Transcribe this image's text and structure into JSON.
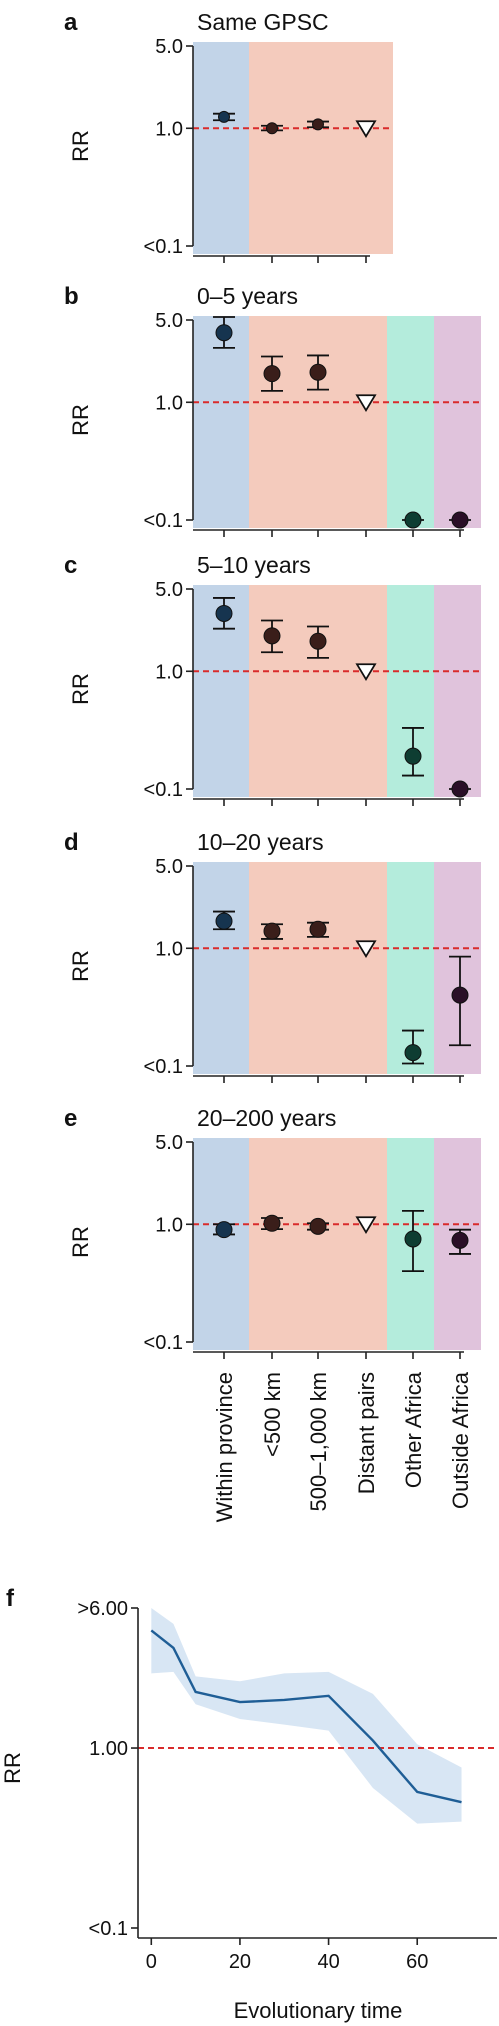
{
  "colors": {
    "within": "#c2d4e8",
    "near": "#f4cbbd",
    "other_africa": "#b4ecdc",
    "outside_africa": "#e0c3dc",
    "ref_line": "#d92b2b",
    "axis": "#222222",
    "line_f": "#1f5e96",
    "band_f": "#d8e6f4",
    "pt_within": "#16344f",
    "pt_near": "#3a1e1a",
    "pt_other": "#0e3d32",
    "pt_outside": "#2a0f27"
  },
  "categories": [
    "Within province",
    "<500 km",
    "500–1,000 km",
    "Distant pairs",
    "Other Africa",
    "Outside Africa"
  ],
  "chart_data": [
    {
      "type": "scatter",
      "letter": "a",
      "title": "Same GPSC",
      "ylabel": "RR",
      "yticks": [
        "5.0",
        "1.0",
        "<0.1"
      ],
      "ytick_values": [
        5.0,
        1.0,
        0.1
      ],
      "ylim": [
        0.1,
        5.0
      ],
      "scale": "log",
      "categories": [
        "Within province",
        "<500 km",
        "500–1,000 km",
        "Distant pairs"
      ],
      "values": [
        1.25,
        1.0,
        1.08,
        1.0
      ],
      "ci_low": [
        1.17,
        0.96,
        1.02,
        null
      ],
      "ci_high": [
        1.33,
        1.05,
        1.14,
        null
      ],
      "reference": [
        false,
        false,
        false,
        true
      ]
    },
    {
      "type": "scatter",
      "letter": "b",
      "title": "0–5 years",
      "ylabel": "RR",
      "yticks": [
        "5.0",
        "1.0",
        "<0.1"
      ],
      "ytick_values": [
        5.0,
        1.0,
        0.1
      ],
      "ylim": [
        0.1,
        5.0
      ],
      "scale": "log",
      "categories": [
        "Within province",
        "<500 km",
        "500–1,000 km",
        "Distant pairs",
        "Other Africa",
        "Outside Africa"
      ],
      "values": [
        3.9,
        1.75,
        1.8,
        1.0,
        0.1,
        0.1
      ],
      "ci_low": [
        2.9,
        1.25,
        1.28,
        null,
        null,
        null
      ],
      "ci_high": [
        5.3,
        2.45,
        2.5,
        null,
        null,
        null
      ],
      "reference": [
        false,
        false,
        false,
        true,
        false,
        false
      ]
    },
    {
      "type": "scatter",
      "letter": "c",
      "title": "5–10 years",
      "ylabel": "RR",
      "yticks": [
        "5.0",
        "1.0",
        "<0.1"
      ],
      "ytick_values": [
        5.0,
        1.0,
        0.1
      ],
      "ylim": [
        0.1,
        5.0
      ],
      "scale": "log",
      "categories": [
        "Within province",
        "<500 km",
        "500–1,000 km",
        "Distant pairs",
        "Other Africa",
        "Outside Africa"
      ],
      "values": [
        3.1,
        2.0,
        1.8,
        1.0,
        0.19,
        0.1
      ],
      "ci_low": [
        2.3,
        1.45,
        1.3,
        null,
        0.13,
        null
      ],
      "ci_high": [
        4.2,
        2.7,
        2.4,
        null,
        0.33,
        null
      ],
      "reference": [
        false,
        false,
        false,
        true,
        false,
        false
      ]
    },
    {
      "type": "scatter",
      "letter": "d",
      "title": "10–20 years",
      "ylabel": "RR",
      "yticks": [
        "5.0",
        "1.0",
        "<0.1"
      ],
      "ytick_values": [
        5.0,
        1.0,
        0.1
      ],
      "ylim": [
        0.1,
        5.0
      ],
      "scale": "log",
      "categories": [
        "Within province",
        "<500 km",
        "500–1,000 km",
        "Distant pairs",
        "Other Africa",
        "Outside Africa"
      ],
      "values": [
        1.7,
        1.4,
        1.45,
        1.0,
        0.13,
        0.4
      ],
      "ci_low": [
        1.45,
        1.2,
        1.25,
        null,
        0.105,
        0.15
      ],
      "ci_high": [
        2.05,
        1.6,
        1.65,
        null,
        0.2,
        0.85
      ],
      "reference": [
        false,
        false,
        false,
        true,
        false,
        false
      ]
    },
    {
      "type": "scatter",
      "letter": "e",
      "title": "20–200 years",
      "ylabel": "RR",
      "yticks": [
        "5.0",
        "1.0",
        "<0.1"
      ],
      "ytick_values": [
        5.0,
        1.0,
        0.1
      ],
      "ylim": [
        0.1,
        5.0
      ],
      "scale": "log",
      "categories": [
        "Within province",
        "<500 km",
        "500–1,000 km",
        "Distant pairs",
        "Other Africa",
        "Outside Africa"
      ],
      "values": [
        0.9,
        1.02,
        0.96,
        1.0,
        0.75,
        0.73
      ],
      "ci_low": [
        0.82,
        0.91,
        0.9,
        null,
        0.4,
        0.56
      ],
      "ci_high": [
        1.0,
        1.13,
        1.02,
        null,
        1.3,
        0.9
      ],
      "reference": [
        false,
        false,
        false,
        true,
        false,
        false
      ]
    },
    {
      "type": "line",
      "letter": "f",
      "xlabel": "Evolutionary time",
      "ylabel": "RR",
      "xticks": [
        "0",
        "20",
        "40",
        "60"
      ],
      "xtick_values": [
        0,
        20,
        40,
        60
      ],
      "yticks": [
        ">6.00",
        "1.00",
        "<0.1"
      ],
      "ytick_values": [
        6.0,
        1.0,
        0.1
      ],
      "xlim": [
        -3,
        78
      ],
      "ylim": [
        0.1,
        6.0
      ],
      "scale": "log",
      "x": [
        0,
        5,
        10,
        20,
        30,
        40,
        50,
        60,
        70
      ],
      "values": [
        4.5,
        3.6,
        2.05,
        1.8,
        1.85,
        1.95,
        1.1,
        0.57,
        0.5
      ],
      "ci_low": [
        2.6,
        2.65,
        1.75,
        1.45,
        1.35,
        1.25,
        0.6,
        0.38,
        0.39
      ],
      "ci_high": [
        6.0,
        4.9,
        2.5,
        2.35,
        2.6,
        2.65,
        2.0,
        1.05,
        0.78
      ]
    }
  ]
}
